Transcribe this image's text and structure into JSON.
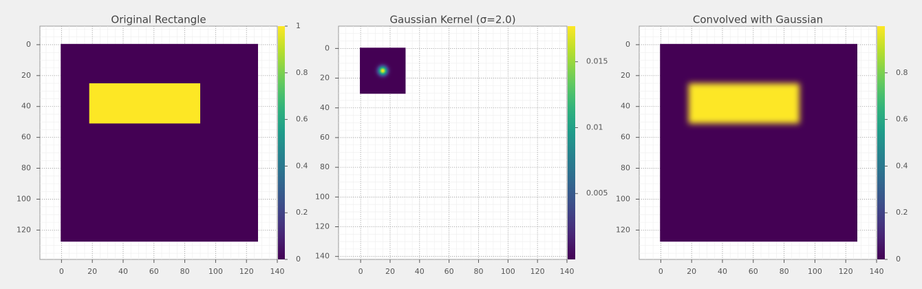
{
  "chart_data": [
    {
      "type": "image",
      "title": "Original Rectangle",
      "xlim": [
        -14,
        140
      ],
      "ylim": [
        139,
        -12
      ],
      "xticks": [
        0,
        20,
        40,
        60,
        80,
        100,
        120,
        140
      ],
      "yticks": [
        0,
        20,
        40,
        60,
        80,
        100,
        120
      ],
      "grid": true,
      "colormap": "viridis",
      "background": {
        "extent": [
          -0.5,
          127.5,
          -0.5,
          127.5
        ],
        "value": 0
      },
      "rect": {
        "extent": [
          18,
          90,
          25,
          51
        ],
        "value": 1
      },
      "colorbar": {
        "lim": [
          0,
          1
        ],
        "ticks": [
          0,
          0.2,
          0.4,
          0.6,
          0.8,
          1
        ]
      }
    },
    {
      "type": "kernel",
      "title": "Gaussian Kernel (σ=2.0)",
      "xlim": [
        -15,
        140
      ],
      "ylim": [
        142,
        -15
      ],
      "xticks": [
        0,
        20,
        40,
        60,
        80,
        100,
        120,
        140
      ],
      "yticks": [
        0,
        20,
        40,
        60,
        80,
        100,
        120,
        140
      ],
      "grid": true,
      "colormap": "viridis",
      "background": {
        "extent": [
          -0.5,
          30.5,
          -0.5,
          30.5
        ],
        "value": 0
      },
      "gaussian": {
        "center": [
          15,
          15
        ],
        "sigma": 2.0,
        "peak": 0.0177
      },
      "colorbar": {
        "lim": [
          0,
          0.0177
        ],
        "ticks": [
          0.005,
          0.01,
          0.015
        ]
      }
    },
    {
      "type": "image",
      "title": "Convolved with Gaussian",
      "xlim": [
        -14,
        140
      ],
      "ylim": [
        139,
        -12
      ],
      "xticks": [
        0,
        20,
        40,
        60,
        80,
        100,
        120,
        140
      ],
      "yticks": [
        0,
        20,
        40,
        60,
        80,
        100,
        120
      ],
      "grid": true,
      "colormap": "viridis",
      "background": {
        "extent": [
          -0.5,
          127.5,
          -0.5,
          127.5
        ],
        "value": 0
      },
      "rect": {
        "extent": [
          18,
          90,
          25,
          51
        ],
        "value": 1,
        "blur_sigma": 2.0
      },
      "colorbar": {
        "lim": [
          0,
          1
        ],
        "ticks": [
          0,
          0.2,
          0.4,
          0.6,
          0.8
        ]
      }
    }
  ]
}
